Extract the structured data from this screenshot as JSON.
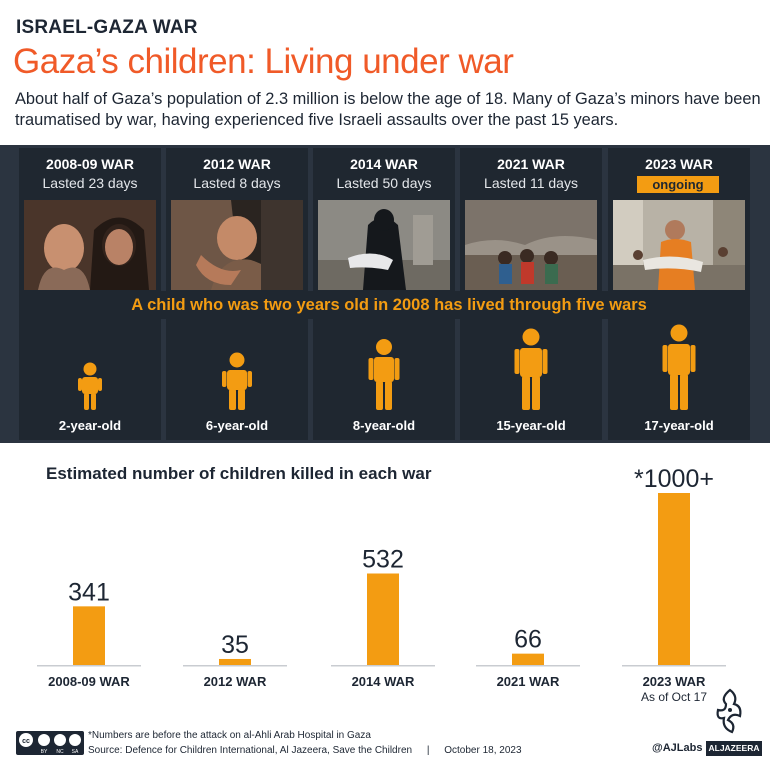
{
  "header": {
    "kicker": "ISRAEL-GAZA WAR",
    "title": "Gaza’s children: Living under war",
    "intro": "About half of Gaza’s population of 2.3 million is below the age of 18. Many of Gaza’s minors have been traumatised by war, having experienced five Israeli assaults over the past 15 years."
  },
  "wars": [
    {
      "name": "2008-09 WAR",
      "duration": "Lasted 23 days",
      "age": "2-year-old"
    },
    {
      "name": "2012 WAR",
      "duration": "Lasted 8 days",
      "age": "6-year-old"
    },
    {
      "name": "2014 WAR",
      "duration": "Lasted 50 days",
      "age": "8-year-old"
    },
    {
      "name": "2021 WAR",
      "duration": "Lasted 11 days",
      "age": "15-year-old"
    },
    {
      "name": "2023 WAR",
      "badge": "ongoing",
      "age": "17-year-old"
    }
  ],
  "banner": "A child who was two years old in 2008 has lived through five wars",
  "colors": {
    "accent": "#f05a28",
    "bar": "#f39c12",
    "band": "#2b3440",
    "panel": "#1f2730"
  },
  "chart_data": {
    "type": "bar",
    "title": "Estimated number of children killed in each war",
    "categories": [
      "2008-09 WAR",
      "2012 WAR",
      "2014 WAR",
      "2021 WAR",
      "2023 WAR"
    ],
    "category_notes": [
      "",
      "",
      "",
      "",
      "As of Oct 17"
    ],
    "values": [
      341,
      35,
      532,
      66,
      1000
    ],
    "value_labels": [
      "341",
      "35",
      "532",
      "66",
      "*1000+"
    ],
    "ylim": [
      0,
      1000
    ],
    "grid": false,
    "color": "#f39c12"
  },
  "footer": {
    "note": "*Numbers are before the attack on al-Ahli Arab Hospital in Gaza",
    "source": "Source: Defence for Children International, Al Jazeera, Save the Children",
    "separator": "|",
    "date": "October 18, 2023",
    "cc_labels": [
      "cc",
      "BY",
      "NC",
      "SA"
    ],
    "handle": "@AJLabs",
    "brand": "ALJAZEERA"
  }
}
